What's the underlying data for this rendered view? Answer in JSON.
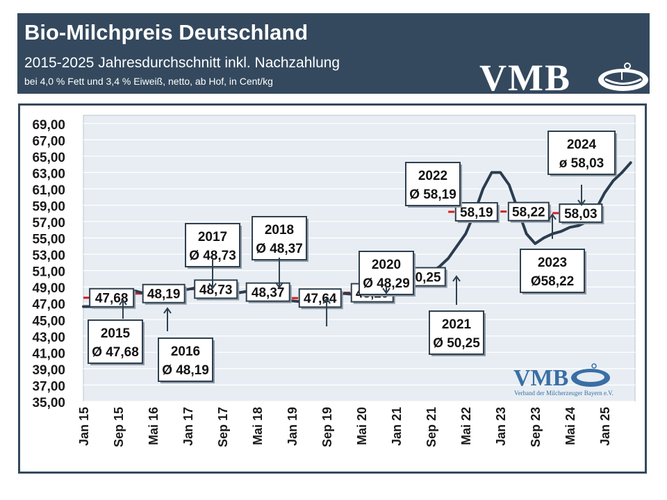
{
  "header": {
    "title": "Bio-Milchpreis Deutschland",
    "subtitle": "2015-2025 Jahresdurchschnitt inkl. Nachzahlung",
    "note": "bei 4,0 % Fett und 3,4 % Eiweiß, netto, ab Hof, in Cent/kg",
    "logo_text": "VMB"
  },
  "watermark": {
    "logo_text": "VMB",
    "caption": "Verband der Milcherzeuger Bayern e.V."
  },
  "colors": {
    "header_bg": "#34495e",
    "line": "#2b3c4f",
    "plot_bg": "#e7edf2",
    "grid": "#ffffff",
    "avg_dash": "#d62020",
    "logo_blue": "#3a6ea5"
  },
  "chart_data": {
    "type": "line",
    "title": "Bio-Milchpreis Deutschland",
    "ylim": [
      35,
      70
    ],
    "y_ticks": [
      "35,00",
      "37,00",
      "39,00",
      "41,00",
      "43,00",
      "45,00",
      "47,00",
      "49,00",
      "51,00",
      "53,00",
      "55,00",
      "57,00",
      "59,00",
      "61,00",
      "63,00",
      "65,00",
      "67,00",
      "69,00"
    ],
    "x_ticks": [
      {
        "label": "Jan 15",
        "month": 0
      },
      {
        "label": "Sep 15",
        "month": 8
      },
      {
        "label": "Mai 16",
        "month": 16
      },
      {
        "label": "Jan 17",
        "month": 24
      },
      {
        "label": "Sep 17",
        "month": 32
      },
      {
        "label": "Mai 18",
        "month": 40
      },
      {
        "label": "Jan 19",
        "month": 48
      },
      {
        "label": "Sep 19",
        "month": 56
      },
      {
        "label": "Mai 20",
        "month": 64
      },
      {
        "label": "Jan 21",
        "month": 72
      },
      {
        "label": "Sep 21",
        "month": 80
      },
      {
        "label": "Mai 22",
        "month": 88
      },
      {
        "label": "Jan 23",
        "month": 96
      },
      {
        "label": "Sep 23",
        "month": 104
      },
      {
        "label": "Mai 24",
        "month": 112
      },
      {
        "label": "Jan 25",
        "month": 120
      }
    ],
    "series": [
      {
        "months": [
          0,
          2,
          4,
          6,
          8,
          10,
          12,
          14,
          16,
          18,
          20,
          22,
          24,
          26,
          28,
          30,
          32,
          34,
          36,
          38,
          40,
          42,
          44,
          46,
          48,
          50,
          52,
          54,
          56,
          58,
          60,
          62,
          64,
          66,
          68,
          70,
          72,
          74,
          76,
          78,
          80,
          82,
          84,
          86,
          88,
          90,
          92,
          94,
          96,
          98,
          100,
          102,
          104,
          106,
          108,
          110,
          112,
          114,
          116,
          118,
          120,
          122,
          124,
          126
        ],
        "values": [
          46.6,
          46.6,
          47.2,
          47.7,
          48.0,
          48.4,
          48.5,
          48.2,
          47.2,
          47.5,
          48.2,
          48.6,
          48.7,
          48.9,
          48.7,
          48.7,
          48.7,
          48.5,
          48.3,
          48.5,
          48.3,
          48.2,
          47.9,
          47.5,
          47.3,
          47.2,
          47.5,
          47.7,
          47.8,
          47.9,
          48.2,
          48.1,
          47.7,
          47.8,
          48.5,
          49.5,
          49.8,
          50.2,
          50.3,
          50.3,
          50.8,
          51.5,
          52.5,
          54.0,
          55.5,
          58.0,
          61.0,
          63.0,
          63.0,
          61.5,
          58.5,
          55.5,
          54.3,
          55.0,
          55.5,
          55.8,
          56.3,
          56.5,
          57.0,
          58.5,
          60.5,
          62.0,
          63.0,
          64.2
        ]
      }
    ],
    "averages": [
      {
        "year": "2015",
        "value": 47.68,
        "box_label": "47,68",
        "annotation_year": "2015",
        "annotation_value": "Ø 47,68"
      },
      {
        "year": "2016",
        "value": 48.19,
        "box_label": "48,19",
        "annotation_year": "2016",
        "annotation_value": "Ø 48,19"
      },
      {
        "year": "2017",
        "value": 48.73,
        "box_label": "48,73",
        "annotation_year": "2017",
        "annotation_value": "Ø 48,73"
      },
      {
        "year": "2018",
        "value": 48.37,
        "box_label": "48,37",
        "annotation_year": "2018",
        "annotation_value": "Ø 48,37"
      },
      {
        "year": "2019",
        "value": 47.64,
        "box_label": "47,64",
        "annotation_year": "",
        "annotation_value": ""
      },
      {
        "year": "2020",
        "value": 48.29,
        "box_label": "48,29",
        "annotation_year": "2020",
        "annotation_value": "Ø 48,29"
      },
      {
        "year": "2021",
        "value": 50.25,
        "box_label": "50,25",
        "annotation_year": "2021",
        "annotation_value": "Ø 50,25"
      },
      {
        "year": "2022",
        "value": 58.19,
        "box_label": "58,19",
        "annotation_year": "2022",
        "annotation_value": "Ø 58,19"
      },
      {
        "year": "2023",
        "value": 58.22,
        "box_label": "58,22",
        "annotation_year": "2023",
        "annotation_value": "Ø58,22"
      },
      {
        "year": "2024",
        "value": 58.03,
        "box_label": "58,03",
        "annotation_year": "2024",
        "annotation_value": "ø 58,03"
      }
    ]
  }
}
